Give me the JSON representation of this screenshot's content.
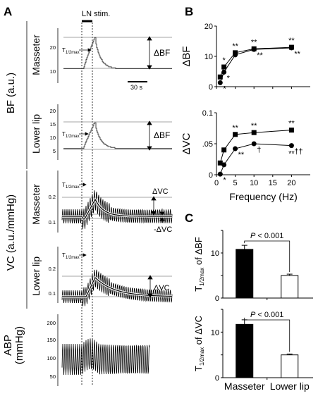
{
  "panel_labels": {
    "a": "A",
    "b": "B",
    "c": "C"
  },
  "panel_a": {
    "stimulus_label": "LN stim.",
    "group_bf": "BF (a.u.)",
    "group_vc": "VC (a.u./mmHg)",
    "group_abp_line1": "ABP",
    "group_abp_line2": "(mmHg)",
    "row_masseter": "Masseter",
    "row_lower_lip": "Lower lip",
    "t_half": "T",
    "t_half_sub": "1/2max",
    "delta_bf": "ΔBF",
    "delta_vc": "ΔVC",
    "minus_delta_vc": "-ΔVC",
    "scale_bar": "30 s",
    "ticks_bf_masseter": [
      "20",
      "10"
    ],
    "ticks_bf_lip": [
      "20",
      "15",
      "10",
      "5"
    ],
    "ticks_vc": [
      "0.2",
      "0.1"
    ],
    "ticks_abp": [
      "200",
      "150",
      "100",
      "50"
    ]
  },
  "chart_data": [
    {
      "type": "line",
      "panel": "B-top",
      "ylabel": "ΔBF",
      "xlim": [
        0,
        25
      ],
      "ylim": [
        0,
        20
      ],
      "yticks": [
        "0",
        "10",
        "20"
      ],
      "series": [
        {
          "marker": "square",
          "x": [
            1,
            2,
            5,
            10,
            20
          ],
          "y": [
            3.2,
            6.5,
            11.2,
            12.5,
            13.0
          ],
          "annotations": [
            "",
            "*",
            "**",
            "**",
            "**"
          ]
        },
        {
          "marker": "circle",
          "x": [
            1,
            2,
            5,
            10,
            20
          ],
          "y": [
            1.3,
            4.8,
            10.5,
            12.3,
            12.8
          ],
          "annotations": [
            "*",
            "*",
            "",
            "**",
            "**"
          ]
        }
      ]
    },
    {
      "type": "line",
      "panel": "B-bottom",
      "ylabel": "ΔVC",
      "xlabel": "Frequency (Hz)",
      "xlim": [
        0,
        25
      ],
      "ylim": [
        0,
        0.1
      ],
      "yticks": [
        "0",
        ".05",
        "0.1"
      ],
      "xticks": [
        "0",
        "5",
        "10",
        "15",
        "20"
      ],
      "series": [
        {
          "marker": "square",
          "x": [
            1,
            2,
            5,
            10,
            20
          ],
          "y": [
            0.019,
            0.04,
            0.065,
            0.068,
            0.072
          ],
          "annotations": [
            "",
            "",
            "**",
            "**",
            "**"
          ]
        },
        {
          "marker": "circle",
          "x": [
            1,
            2,
            5,
            10,
            20
          ],
          "y": [
            0.001,
            0.016,
            0.042,
            0.05,
            0.047
          ],
          "annotations": [
            "*",
            "",
            "**",
            "†",
            "††"
          ],
          "annotations_below": [
            "",
            "",
            "",
            "",
            "**"
          ]
        }
      ]
    },
    {
      "type": "bar",
      "panel": "C-top",
      "ylabel_main": "T",
      "ylabel_sub": "1/2max",
      "ylabel_tail": " of ΔBF",
      "categories": [
        "Masseter",
        "Lower lip"
      ],
      "values": [
        10.8,
        5.0
      ],
      "errors": [
        0.9,
        0.3
      ],
      "fills": [
        "#000000",
        "#ffffff"
      ],
      "ylim": [
        0,
        15
      ],
      "yticks": [
        "0",
        "10"
      ],
      "p_label": "P",
      "p_value": " < 0.001"
    },
    {
      "type": "bar",
      "panel": "C-bottom",
      "ylabel_main": "T",
      "ylabel_sub": "1/2max",
      "ylabel_tail": " of ΔVC",
      "categories": [
        "Masseter",
        "Lower lip"
      ],
      "values": [
        11.7,
        5.0
      ],
      "errors": [
        1.0,
        0.2
      ],
      "fills": [
        "#000000",
        "#ffffff"
      ],
      "ylim": [
        0,
        15
      ],
      "yticks": [
        "0",
        "10"
      ],
      "p_label": "P",
      "p_value": " < 0.001"
    }
  ]
}
